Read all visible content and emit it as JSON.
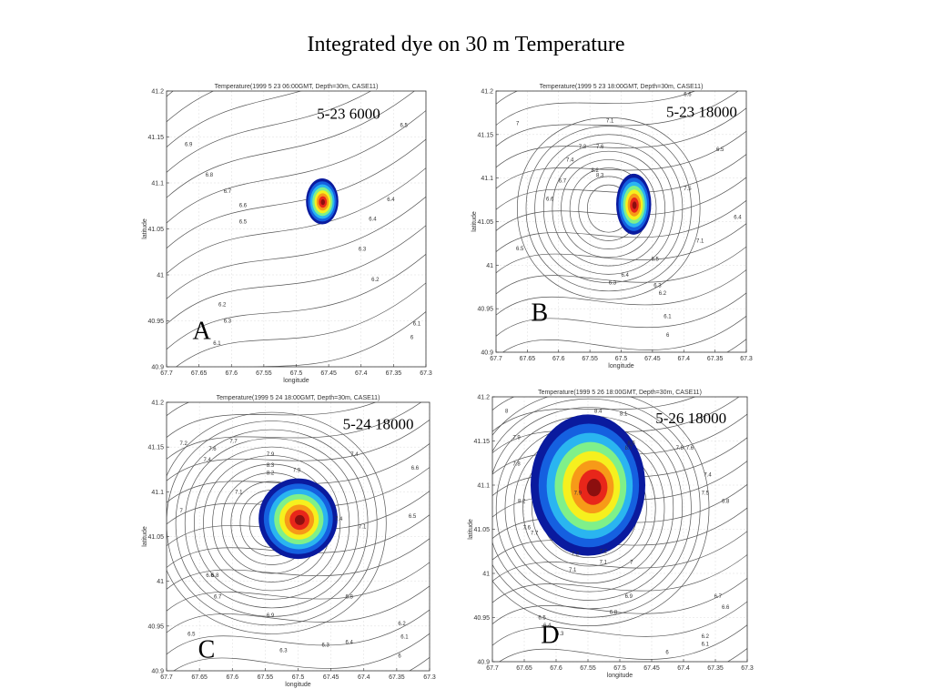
{
  "title": "Integrated dye on 30 m Temperature",
  "axes": {
    "x_label": "longitude",
    "y_label": "latitude",
    "x_ticks": [
      "67.7",
      "67.65",
      "67.6",
      "67.55",
      "67.5",
      "67.45",
      "67.4",
      "67.35",
      "67.3"
    ],
    "y_ticks": [
      "41.2",
      "41.15",
      "41.1",
      "41.05",
      "41",
      "40.95",
      "40.9"
    ]
  },
  "panels": [
    {
      "id": "A",
      "plot_title": "Temperature(1999   5   23 06:00GMT, Depth=30m, CASE11)",
      "tag": "5-23 6000",
      "letter": "A",
      "contour_labels": [
        "6.9",
        "6.8",
        "6.7",
        "6.6",
        "6.5",
        "6.5",
        "6.4",
        "6.4",
        "6.3",
        "6.3",
        "6.2",
        "6.2",
        "6.1",
        "6.1",
        "6"
      ],
      "dye": {
        "lon": 67.46,
        "lat": 41.08,
        "rx": 0.025,
        "ry": 0.025
      }
    },
    {
      "id": "B",
      "plot_title": "Temperature(1999   5   23 18:00GMT, Depth=30m, CASE11)",
      "tag": "5-23 18000",
      "letter": "B",
      "contour_labels": [
        "6.6",
        "7",
        "7.1",
        "7.3",
        "7.4",
        "7.6",
        "8.2",
        "8.3",
        "7.5",
        "7.1",
        "6.5",
        "6.7",
        "6.6",
        "6.5",
        "6.4",
        "6.3",
        "6.2",
        "6.1",
        "6",
        "6.5",
        "6.4",
        "6.3"
      ],
      "dye": {
        "lon": 67.48,
        "lat": 41.07,
        "rx": 0.028,
        "ry": 0.035
      }
    },
    {
      "id": "C",
      "plot_title": "Temperature(1999   5   24 18:00GMT, Depth=30m, CASE11)",
      "tag": "5-24 18000",
      "letter": "C",
      "contour_labels": [
        "7.2",
        "7.6",
        "7.4",
        "7.7",
        "7.9",
        "8.3",
        "8.2",
        "7.9",
        "7.4",
        "7.1",
        "7",
        "6.8",
        "6.7",
        "6.6",
        "6.9",
        "6.8",
        "6.4",
        "6.3",
        "6.5",
        "6.2",
        "6.1",
        "6",
        "6.6",
        "6.5",
        "6.3",
        "7.4",
        "7.1"
      ],
      "dye": {
        "lon": 67.5,
        "lat": 41.07,
        "rx": 0.06,
        "ry": 0.045
      }
    },
    {
      "id": "D",
      "plot_title": "Temperature(1999   5   26 18:00GMT, Depth=30m, CASE11)",
      "tag": "5-26 18000",
      "letter": "D",
      "contour_labels": [
        "8",
        "7.9",
        "7.8",
        "8.2",
        "8.4",
        "8.1",
        "8.6",
        "8.7",
        "7.9",
        "7.8",
        "7.6",
        "7.4",
        "7.5",
        "7.6",
        "7.7",
        "7.2",
        "7.1",
        "7",
        "6.9",
        "6.8",
        "6.7",
        "6.6",
        "6.5",
        "6.4",
        "6.3",
        "6.2",
        "6.1",
        "6",
        "7.2",
        "7.1",
        "6.8"
      ],
      "dye": {
        "lon": 67.55,
        "lat": 41.1,
        "rx": 0.09,
        "ry": 0.08
      }
    }
  ],
  "colors": {
    "dye_outer": "#0a1a9e",
    "dye_2": "#1560e0",
    "dye_3": "#2ab5f0",
    "dye_4": "#7ff08a",
    "dye_5": "#f6f01e",
    "dye_6": "#f79a18",
    "dye_7": "#e8261a",
    "dye_core": "#8c0f0f",
    "contour": "#555555",
    "grid": "#dddddd"
  }
}
